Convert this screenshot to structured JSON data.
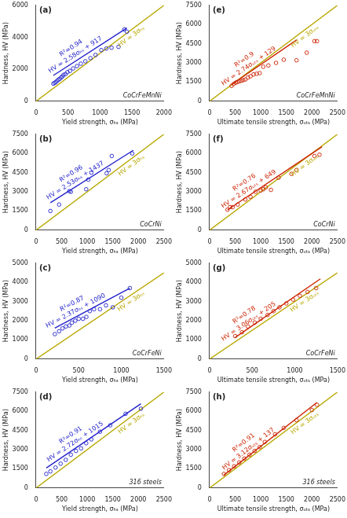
{
  "chart_data": [
    {
      "type": "scatter",
      "annotations": [
        {
          "text": "(a)"
        },
        {
          "text": "CoCrFeMnNi"
        },
        {
          "text": "R²=0.94",
          "color": "#2222cc"
        },
        {
          "text": "HV = 2.58σₕₛ + 917",
          "color": "#2222cc"
        },
        {
          "text": "HV = 3σₕₛ",
          "color": "#b8a800"
        }
      ],
      "xlabel": "Yield strength, σₕₛ (MPa)",
      "ylabel": "Hardness, HV (MPa)",
      "xlim": [
        0,
        2000
      ],
      "ylim": [
        0,
        6000
      ],
      "xticks": [
        0,
        500,
        1000,
        1500,
        2000
      ],
      "yticks": [
        0,
        2000,
        4000,
        6000
      ],
      "grid": false,
      "series": [
        {
          "type": "scatter",
          "color": "#2222cc",
          "marker": "open_circle",
          "x": [
            270,
            290,
            310,
            330,
            350,
            370,
            390,
            410,
            430,
            460,
            490,
            530,
            580,
            640,
            700,
            770,
            850,
            930,
            1020,
            1100,
            1180,
            1290,
            1380,
            1420
          ],
          "values": [
            1100,
            1150,
            1200,
            1280,
            1350,
            1400,
            1480,
            1550,
            1650,
            1700,
            1820,
            1900,
            2050,
            2200,
            2350,
            2500,
            2700,
            2900,
            3200,
            3300,
            3350,
            3400,
            4500,
            4350
          ]
        },
        {
          "type": "line",
          "color": "#2222cc",
          "x": [
            270,
            1420
          ],
          "values": [
            1613.6,
            4580.6
          ]
        },
        {
          "type": "line",
          "color": "#b8a800",
          "x": [
            0,
            2000
          ],
          "values": [
            0,
            6000
          ]
        }
      ]
    },
    {
      "type": "scatter",
      "annotations": [
        {
          "text": "(b)"
        },
        {
          "text": "CoCrNi"
        },
        {
          "text": "R²=0.96",
          "color": "#2222cc"
        },
        {
          "text": "HV = 2.53σₕₛ + 1437",
          "color": "#2222cc"
        },
        {
          "text": "HV = 3σₕₛ",
          "color": "#b8a800"
        }
      ],
      "xlabel": "Yield strength, σₕₛ (MPa)",
      "ylabel": "Hardness, HV (MPa)",
      "xlim": [
        0,
        2500
      ],
      "ylim": [
        0,
        7500
      ],
      "xticks": [
        0,
        500,
        1000,
        1500,
        2000,
        2500
      ],
      "yticks": [
        0,
        1500,
        3000,
        4500,
        6000,
        7500
      ],
      "grid": false,
      "series": [
        {
          "type": "scatter",
          "color": "#2222cc",
          "marker": "open_circle",
          "x": [
            280,
            450,
            650,
            680,
            980,
            1020,
            1080,
            1380,
            1420,
            1480,
            1880
          ],
          "values": [
            1500,
            2000,
            3050,
            3000,
            3200,
            3950,
            4500,
            4450,
            4700,
            5800,
            6000
          ]
        },
        {
          "type": "line",
          "color": "#2222cc",
          "x": [
            280,
            1900
          ],
          "values": [
            2145.4,
            6244
          ]
        },
        {
          "type": "line",
          "color": "#b8a800",
          "x": [
            0,
            2500
          ],
          "values": [
            0,
            7500
          ]
        }
      ]
    },
    {
      "type": "scatter",
      "annotations": [
        {
          "text": "(c)"
        },
        {
          "text": "CoCrFeNi"
        },
        {
          "text": "R²=0.87",
          "color": "#2222cc"
        },
        {
          "text": "HV = 2.37σₕₛ + 1090",
          "color": "#2222cc"
        },
        {
          "text": "HV = 3σₕₛ",
          "color": "#b8a800"
        }
      ],
      "xlabel": "Yield strength, σₕₛ (MPa)",
      "ylabel": "Hardness, HV (MPa)",
      "xlim": [
        0,
        1500
      ],
      "ylim": [
        0,
        5000
      ],
      "xticks": [
        0,
        500,
        1000,
        1500
      ],
      "yticks": [
        0,
        1000,
        2000,
        3000,
        4000,
        5000
      ],
      "grid": false,
      "series": [
        {
          "type": "scatter",
          "color": "#2222cc",
          "marker": "open_circle",
          "x": [
            220,
            270,
            310,
            350,
            390,
            420,
            460,
            500,
            550,
            590,
            630,
            680,
            750,
            820,
            900,
            1000,
            1100
          ],
          "values": [
            1300,
            1450,
            1600,
            1700,
            1750,
            1900,
            2000,
            2100,
            2100,
            2200,
            2500,
            2600,
            2600,
            2800,
            2700,
            3200,
            3700
          ]
        },
        {
          "type": "line",
          "color": "#2222cc",
          "x": [
            220,
            1100
          ],
          "values": [
            1611.4,
            3697
          ]
        },
        {
          "type": "line",
          "color": "#b8a800",
          "x": [
            0,
            1500
          ],
          "values": [
            0,
            4500
          ]
        }
      ]
    },
    {
      "type": "scatter",
      "annotations": [
        {
          "text": "(d)"
        },
        {
          "text": "316 steels"
        },
        {
          "text": "R²=0.91",
          "color": "#2222cc"
        },
        {
          "text": "HV = 2.72σₕₛ + 1015",
          "color": "#2222cc"
        },
        {
          "text": "HV = 3σₕₛ",
          "color": "#b8a800"
        }
      ],
      "xlabel": "Yield strength, σₕₛ (MPa)",
      "ylabel": "Hardness, HV (MPa)",
      "xlim": [
        0,
        2500
      ],
      "ylim": [
        0,
        7500
      ],
      "xticks": [
        0,
        500,
        1000,
        1500,
        2000,
        2500
      ],
      "yticks": [
        0,
        1500,
        3000,
        4500,
        6000,
        7500
      ],
      "grid": false,
      "series": [
        {
          "type": "scatter",
          "color": "#2222cc",
          "marker": "open_circle",
          "x": [
            200,
            280,
            380,
            480,
            580,
            680,
            780,
            880,
            980,
            1080,
            1250,
            1450,
            1750,
            2050
          ],
          "values": [
            1100,
            1300,
            1600,
            1900,
            2200,
            2600,
            2900,
            3100,
            3500,
            3800,
            4400,
            4900,
            5800,
            6200
          ]
        },
        {
          "type": "line",
          "color": "#2222cc",
          "x": [
            200,
            2050
          ],
          "values": [
            1559,
            6591
          ]
        },
        {
          "type": "line",
          "color": "#b8a800",
          "x": [
            0,
            2500
          ],
          "values": [
            0,
            7500
          ]
        }
      ]
    },
    {
      "type": "scatter",
      "annotations": [
        {
          "text": "(e)"
        },
        {
          "text": "CoCrFeMnNi"
        },
        {
          "text": "R²=0.9",
          "color": "#cc2200"
        },
        {
          "text": "HV = 2.74σᵤₜₛ + 129",
          "color": "#cc2200"
        },
        {
          "text": "HV = 3σᵤₜₛ",
          "color": "#b8a800"
        }
      ],
      "xlabel": "Ultimate tensile strength, σᵤₜₛ (MPa)",
      "ylabel": "Hardness, HV (MPa)",
      "xlim": [
        0,
        2500
      ],
      "ylim": [
        0,
        7500
      ],
      "xticks": [
        0,
        500,
        1000,
        1500,
        2000,
        2500
      ],
      "yticks": [
        0,
        1500,
        3000,
        4500,
        6000,
        7500
      ],
      "grid": false,
      "series": [
        {
          "type": "scatter",
          "color": "#cc2200",
          "marker": "open_circle",
          "x": [
            430,
            470,
            510,
            540,
            580,
            620,
            660,
            700,
            750,
            800,
            860,
            920,
            980,
            1050,
            1150,
            1300,
            1450,
            1700,
            1900,
            2050,
            2100
          ],
          "values": [
            1200,
            1350,
            1450,
            1500,
            1550,
            1600,
            1650,
            1700,
            1850,
            1950,
            2100,
            2150,
            2200,
            2700,
            2800,
            3000,
            3250,
            3200,
            3800,
            4700,
            4700
          ]
        },
        {
          "type": "line",
          "color": "#cc2200",
          "x": [
            430,
            1700
          ],
          "values": [
            1307.2,
            4787
          ]
        },
        {
          "type": "line",
          "color": "#b8a800",
          "x": [
            0,
            2500
          ],
          "values": [
            0,
            7500
          ]
        }
      ]
    },
    {
      "type": "scatter",
      "annotations": [
        {
          "text": "(f)"
        },
        {
          "text": "CoCrNi"
        },
        {
          "text": "R²=0.76",
          "color": "#cc2200"
        },
        {
          "text": "HV = 2.67σᵤₜₛ + 649",
          "color": "#cc2200"
        },
        {
          "text": "HV = 3σᵤₜₛ",
          "color": "#b8a800"
        }
      ],
      "xlabel": "Ultimate tensile strength, σᵤₜₛ (MPa)",
      "ylabel": "Hardness, HV (MPa)",
      "xlim": [
        0,
        2500
      ],
      "ylim": [
        0,
        7500
      ],
      "xticks": [
        0,
        500,
        1000,
        1500,
        2000,
        2500
      ],
      "yticks": [
        0,
        1500,
        3000,
        4500,
        6000,
        7500
      ],
      "grid": false,
      "series": [
        {
          "type": "scatter",
          "color": "#cc2200",
          "marker": "open_circle",
          "x": [
            350,
            400,
            450,
            550,
            700,
            800,
            900,
            1000,
            1050,
            1100,
            1200,
            1350,
            1600,
            1700,
            2050,
            2150
          ],
          "values": [
            1600,
            1800,
            1800,
            2000,
            2400,
            2600,
            3000,
            3100,
            3200,
            3350,
            3150,
            4100,
            4400,
            4700,
            5800,
            5900
          ]
        },
        {
          "type": "line",
          "color": "#cc2200",
          "x": [
            350,
            2200
          ],
          "values": [
            1583.5,
            6523
          ]
        },
        {
          "type": "line",
          "color": "#b8a800",
          "x": [
            0,
            2500
          ],
          "values": [
            0,
            7500
          ]
        }
      ]
    },
    {
      "type": "scatter",
      "annotations": [
        {
          "text": "(g)"
        },
        {
          "text": "CoCrFeNi"
        },
        {
          "text": "R²=0.78",
          "color": "#cc2200"
        },
        {
          "text": "HV = 3.06σᵤₜₛ + 205",
          "color": "#cc2200"
        },
        {
          "text": "HV = 3σᵤₜₛ",
          "color": "#b8a800"
        }
      ],
      "xlabel": "Ultimate tensile strength, σᵤₜₛ (MPa)",
      "ylabel": "Hardness, HV (MPa)",
      "xlim": [
        0,
        1500
      ],
      "ylim": [
        0,
        5000
      ],
      "xticks": [
        0,
        500,
        1000,
        1500
      ],
      "yticks": [
        0,
        1000,
        2000,
        3000,
        4000,
        5000
      ],
      "grid": false,
      "series": [
        {
          "type": "scatter",
          "color": "#cc2200",
          "marker": "open_circle",
          "x": [
            300,
            380,
            450,
            530,
            600,
            680,
            750,
            820,
            900,
            980,
            1060,
            1150,
            1250
          ],
          "values": [
            1200,
            1400,
            1700,
            1900,
            2100,
            2300,
            2500,
            2700,
            2900,
            3100,
            3300,
            3500,
            3700
          ]
        },
        {
          "type": "line",
          "color": "#cc2200",
          "x": [
            300,
            1300
          ],
          "values": [
            1123,
            4183
          ]
        },
        {
          "type": "line",
          "color": "#b8a800",
          "x": [
            0,
            1500
          ],
          "values": [
            0,
            4500
          ]
        }
      ]
    },
    {
      "type": "scatter",
      "annotations": [
        {
          "text": "(h)"
        },
        {
          "text": "316 steels"
        },
        {
          "text": "R²=0.91",
          "color": "#cc2200"
        },
        {
          "text": "HV = 3.12σᵤₜₛ + 137",
          "color": "#cc2200"
        },
        {
          "text": "HV = 3σᵤₜₛ",
          "color": "#b8a800"
        }
      ],
      "xlabel": "Ultimate tensile strength, σᵤₜₛ (MPa)",
      "ylabel": "Hardness, HV (MPa)",
      "xlim": [
        0,
        2500
      ],
      "ylim": [
        0,
        7500
      ],
      "xticks": [
        0,
        500,
        1000,
        1500,
        2000,
        2500
      ],
      "yticks": [
        0,
        1500,
        3000,
        4500,
        6000,
        7500
      ],
      "grid": false,
      "series": [
        {
          "type": "scatter",
          "color": "#cc2200",
          "marker": "open_circle",
          "x": [
            280,
            380,
            480,
            580,
            680,
            780,
            880,
            980,
            1080,
            1280,
            1450,
            1700,
            2000,
            2100
          ],
          "values": [
            1100,
            1400,
            1700,
            2000,
            2300,
            2600,
            2900,
            3200,
            3600,
            4200,
            4700,
            5300,
            6100,
            6500
          ]
        },
        {
          "type": "line",
          "color": "#cc2200",
          "x": [
            280,
            2100
          ],
          "values": [
            1010.6,
            6689
          ]
        },
        {
          "type": "line",
          "color": "#b8a800",
          "x": [
            0,
            2500
          ],
          "values": [
            0,
            7500
          ]
        }
      ]
    }
  ]
}
